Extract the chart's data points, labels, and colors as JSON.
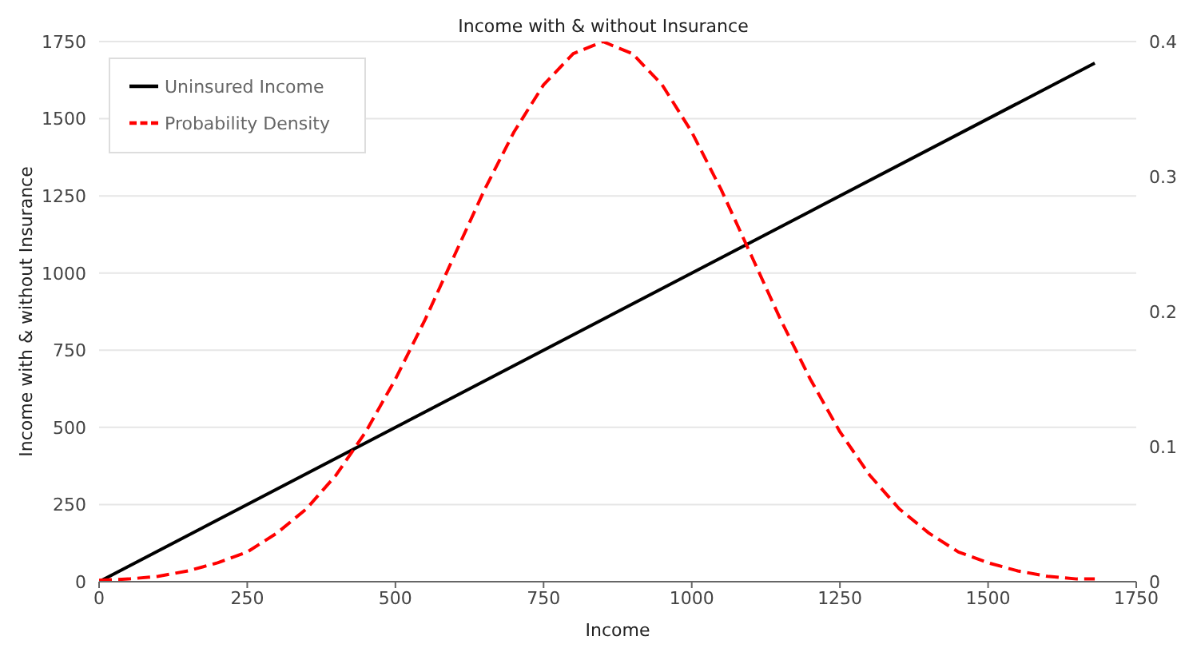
{
  "chart_data": {
    "type": "line",
    "title": "Income with & without Insurance",
    "xlabel": "Income",
    "ylabel": "Income with & without Insurance",
    "xlim": [
      0,
      1750
    ],
    "xticks": [
      0,
      250,
      500,
      750,
      1000,
      1250,
      1500,
      1750
    ],
    "ylim": [
      0,
      1750
    ],
    "yticks": [
      0,
      250,
      500,
      750,
      1000,
      1250,
      1500,
      1750
    ],
    "y2lim": [
      0,
      0.4
    ],
    "y2ticks": [
      0,
      0.1,
      0.2,
      0.3,
      0.4
    ],
    "grid": "y",
    "legend": "top left",
    "marker": "none",
    "series": [
      {
        "name": "Uninsured Income",
        "color": "#000000",
        "line_style": "solid",
        "x": [
          0,
          1680
        ],
        "values": [
          0,
          1680
        ]
      },
      {
        "name": "Probability Density",
        "color": "#ff0000",
        "line_style": "dashed",
        "axis": "y2",
        "x": [
          0,
          50,
          100,
          150,
          200,
          250,
          300,
          350,
          400,
          450,
          500,
          550,
          600,
          650,
          700,
          750,
          800,
          850,
          900,
          950,
          1000,
          1050,
          1100,
          1150,
          1200,
          1250,
          1300,
          1350,
          1400,
          1450,
          1500,
          1550,
          1600,
          1650,
          1680
        ],
        "values": [
          0.001,
          0.002,
          0.004,
          0.008,
          0.014,
          0.022,
          0.036,
          0.054,
          0.079,
          0.111,
          0.15,
          0.194,
          0.242,
          0.29,
          0.333,
          0.368,
          0.391,
          0.4,
          0.391,
          0.368,
          0.333,
          0.29,
          0.242,
          0.194,
          0.15,
          0.111,
          0.079,
          0.054,
          0.036,
          0.022,
          0.014,
          0.008,
          0.004,
          0.002,
          0.002
        ]
      }
    ]
  }
}
